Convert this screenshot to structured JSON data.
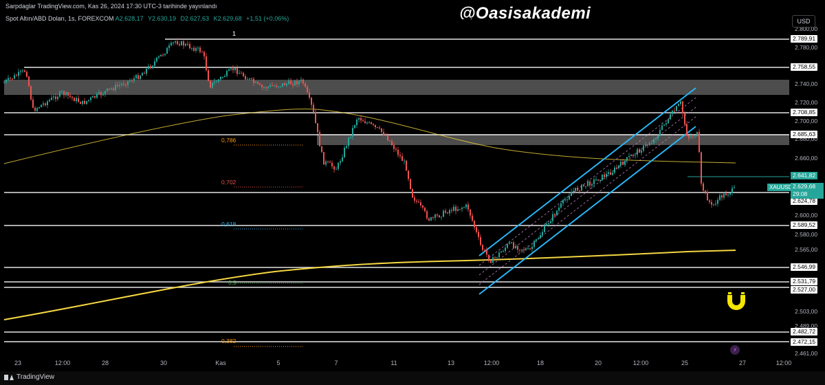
{
  "header": {
    "publish_text": "Sarpdaglar TradingView.com, Kas 26, 2024 17:30 UTC-3 tarihinde yayınlandı",
    "symbol_desc": "Spot Altın/ABD Doları, 1s, FOREXCOM",
    "ohlc": [
      "A2.628,17",
      "Y2.630,19",
      "D2.627,63",
      "K2.629,68",
      "+1,51 (+0,06%)"
    ],
    "watermark": "@Oasisakademi",
    "marker_label": "1"
  },
  "price_axis": {
    "currency": "USD",
    "ticks": [
      "2.800,00",
      "2.780,00",
      "2.740,00",
      "2.720,00",
      "2.700,00",
      "2.680,00",
      "2.660,00",
      "2.600,00",
      "2.580,00",
      "2.565,00",
      "2.503,00",
      "2.489,00",
      "2.461,00"
    ],
    "level_tags": [
      "2.789,91",
      "2.758,55",
      "2.708,85",
      "2.685,63",
      "2.624,78",
      "2.589,52",
      "2.546,99",
      "2.531,79",
      "2.527,00",
      "2.482,72",
      "2.472,15"
    ],
    "teal_tag": "2.641,82",
    "symbol_tag": "XAUUSD",
    "current_price": "2.629,68",
    "countdown": "29:08"
  },
  "time_axis": {
    "labels": [
      "23",
      "12:00",
      "28",
      "30",
      "Kas",
      "5",
      "7",
      "11",
      "13",
      "12:00",
      "18",
      "20",
      "12:00",
      "25",
      "27",
      "12:00"
    ]
  },
  "fib_labels": {
    "f786": "0,786",
    "f702": "0,702",
    "f618": "0,618",
    "f5": "0,5",
    "f382": "0,382"
  },
  "colors": {
    "up": "#26a69a",
    "down": "#ef5350",
    "channel": "#29b6f6",
    "ma_yellow": "#f5d742",
    "zone": "#5a5a5a"
  },
  "footer": {
    "brand": "TradingView"
  }
}
